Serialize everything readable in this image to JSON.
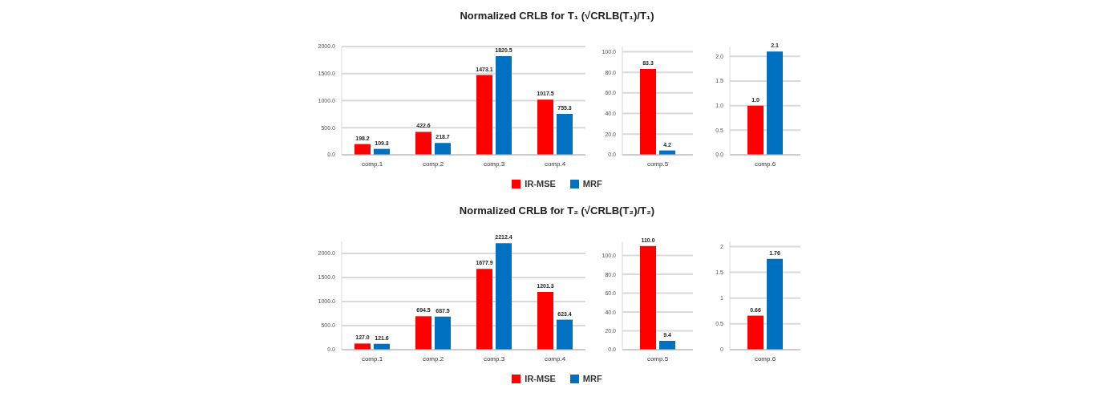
{
  "chart_data": [
    {
      "type": "bar",
      "title": "Normalized CRLB for T₁ (√CRLB(T₁)/T₁)",
      "categories": [
        "comp.1",
        "comp.2",
        "comp.3",
        "comp.4"
      ],
      "series": [
        {
          "name": "IR-MSE",
          "color": "#ff0000",
          "values": [
            198.2,
            422.6,
            1473.1,
            1017.5
          ],
          "value_labels": [
            "198.2",
            "422.6",
            "1473.1",
            "1017.5"
          ]
        },
        {
          "name": "MRF",
          "color": "#0070c0",
          "values": [
            109.3,
            218.7,
            1820.5,
            755.3
          ],
          "value_labels": [
            "109.3",
            "218.7",
            "1820.5",
            "755.3"
          ]
        }
      ],
      "ylim": [
        0,
        2000
      ],
      "yticks": [
        {
          "value": 0,
          "label": "0.0"
        },
        {
          "value": 500,
          "label": "500.0"
        },
        {
          "value": 1000,
          "label": "1000.0"
        },
        {
          "value": 1500,
          "label": "1500.0"
        },
        {
          "value": 2000,
          "label": "2000.0"
        }
      ],
      "grid": "y",
      "legend": "bottom"
    },
    {
      "type": "bar",
      "categories": [
        "comp.5"
      ],
      "series": [
        {
          "color": "#ff0000",
          "values": [
            83.3
          ],
          "value_labels": [
            "83.3"
          ]
        },
        {
          "color": "#0070c0",
          "values": [
            4.2
          ],
          "value_labels": [
            "4.2"
          ]
        }
      ],
      "ylim": [
        0,
        105
      ],
      "yticks": [
        {
          "value": 0,
          "label": "0.0"
        },
        {
          "value": 20,
          "label": "20.0"
        },
        {
          "value": 40,
          "label": "40.0"
        },
        {
          "value": 60,
          "label": "60.0"
        },
        {
          "value": 80,
          "label": "80.0"
        },
        {
          "value": 100,
          "label": "100.0"
        }
      ],
      "grid": "y"
    },
    {
      "type": "bar",
      "categories": [
        "comp.6"
      ],
      "series": [
        {
          "color": "#ff0000",
          "values": [
            1.0
          ],
          "value_labels": [
            "1.0"
          ]
        },
        {
          "color": "#0070c0",
          "values": [
            2.1
          ],
          "value_labels": [
            "2.1"
          ]
        }
      ],
      "ylim": [
        0,
        2.2
      ],
      "yticks": [
        {
          "value": 0,
          "label": "0.0"
        },
        {
          "value": 0.5,
          "label": "0.5"
        },
        {
          "value": 1,
          "label": "1.0"
        },
        {
          "value": 1.5,
          "label": "1.5"
        },
        {
          "value": 2,
          "label": "2.0"
        }
      ],
      "grid": "y"
    },
    {
      "type": "bar",
      "title": "Normalized CRLB for T₂ (√CRLB(T₂)/T₂)",
      "categories": [
        "comp.1",
        "comp.2",
        "comp.3",
        "comp.4"
      ],
      "series": [
        {
          "name": "IR-MSE",
          "color": "#ff0000",
          "values": [
            127.0,
            694.5,
            1677.9,
            1201.3
          ],
          "value_labels": [
            "127.0",
            "694.5",
            "1677.9",
            "1201.3"
          ]
        },
        {
          "name": "MRF",
          "color": "#0070c0",
          "values": [
            121.6,
            687.5,
            2212.4,
            623.4
          ],
          "value_labels": [
            "121.6",
            "687.5",
            "2212.4",
            "623.4"
          ]
        }
      ],
      "ylim": [
        0,
        2250
      ],
      "yticks": [
        {
          "value": 0,
          "label": "0.0"
        },
        {
          "value": 500,
          "label": "500.0"
        },
        {
          "value": 1000,
          "label": "1000.0"
        },
        {
          "value": 1500,
          "label": "1500.0"
        },
        {
          "value": 2000,
          "label": "2000.0"
        }
      ],
      "grid": "y",
      "legend": "bottom"
    },
    {
      "type": "bar",
      "categories": [
        "comp.5"
      ],
      "series": [
        {
          "color": "#ff0000",
          "values": [
            110.0
          ],
          "value_labels": [
            "110.0"
          ]
        },
        {
          "color": "#0070c0",
          "values": [
            9.4
          ],
          "value_labels": [
            "9.4"
          ]
        }
      ],
      "ylim": [
        0,
        115
      ],
      "yticks": [
        {
          "value": 0,
          "label": "0.0"
        },
        {
          "value": 20,
          "label": "20.0"
        },
        {
          "value": 40,
          "label": "40.0"
        },
        {
          "value": 60,
          "label": "60.0"
        },
        {
          "value": 80,
          "label": "80.0"
        },
        {
          "value": 100,
          "label": "100.0"
        }
      ],
      "grid": "y"
    },
    {
      "type": "bar",
      "categories": [
        "comp.6"
      ],
      "series": [
        {
          "color": "#ff0000",
          "values": [
            0.66
          ],
          "value_labels": [
            "0.66"
          ]
        },
        {
          "color": "#0070c0",
          "values": [
            1.76
          ],
          "value_labels": [
            "1.76"
          ]
        }
      ],
      "ylim": [
        0,
        2.1
      ],
      "yticks": [
        0,
        0.5,
        1,
        1.5,
        2
      ],
      "grid": "y"
    }
  ]
}
